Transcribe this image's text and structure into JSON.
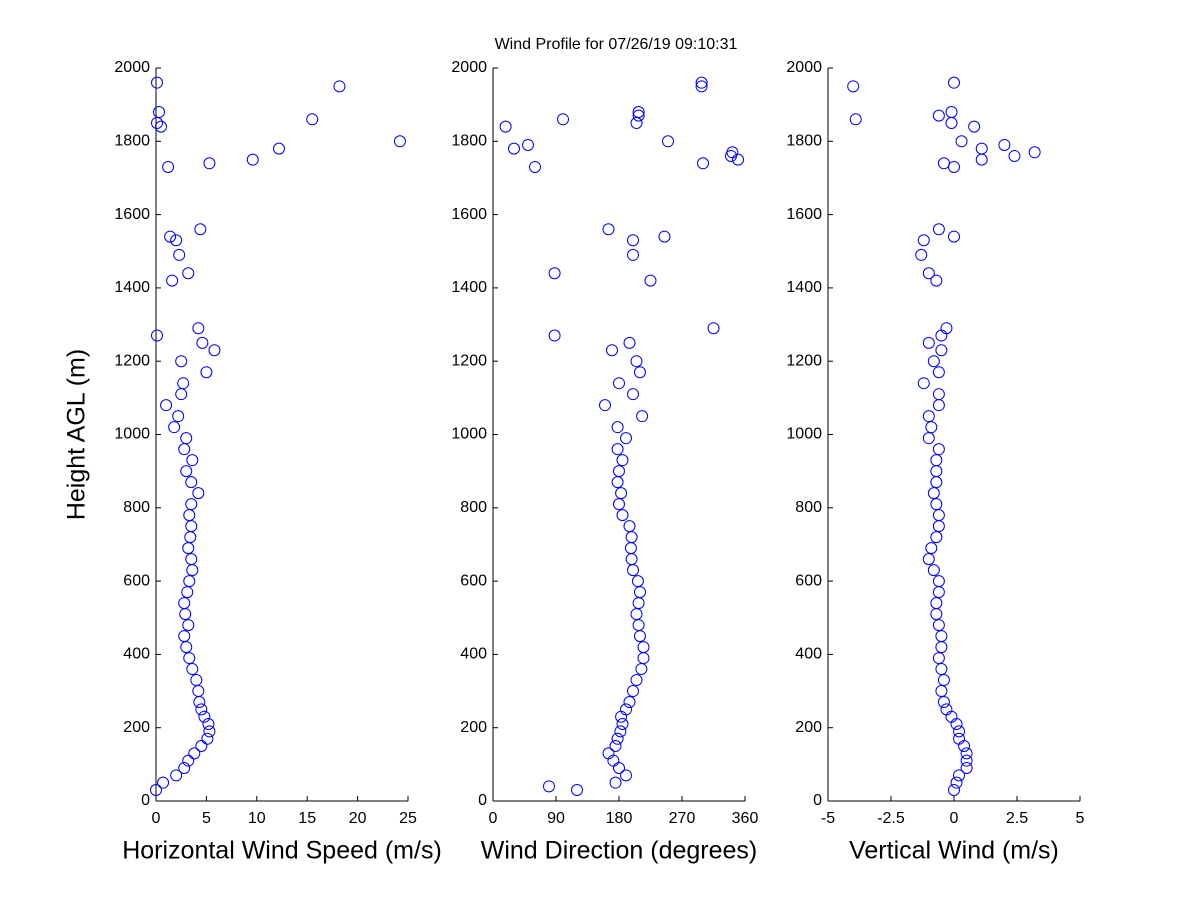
{
  "title": "Wind Profile for  07/26/19 09:10:31",
  "chart_data": [
    {
      "type": "scatter",
      "xlabel": "Horizontal Wind Speed (m/s)",
      "ylabel": "Height AGL (m)",
      "color": "#0000ff",
      "xlim": [
        0,
        25
      ],
      "xticks": [
        0,
        5,
        10,
        15,
        20,
        25
      ],
      "ylim": [
        0,
        2000
      ],
      "yticks": [
        0,
        200,
        400,
        600,
        800,
        1000,
        1200,
        1400,
        1600,
        1800,
        2000
      ],
      "x": [
        0,
        0.7,
        2,
        2.8,
        3.2,
        3.8,
        4.5,
        5.1,
        5.3,
        5.2,
        4.8,
        4.5,
        4.3,
        4.2,
        4.0,
        3.6,
        3.3,
        3.0,
        2.8,
        3.2,
        2.9,
        2.8,
        3.1,
        3.3,
        3.6,
        3.5,
        3.2,
        3.4,
        3.5,
        3.3,
        3.5,
        4.2,
        3.5,
        3.0,
        3.6,
        2.8,
        3.0,
        1.8,
        2.2,
        1.0,
        2.5,
        2.7,
        5.0,
        2.5,
        5.8,
        4.6,
        0.1,
        4.2,
        1.6,
        3.2,
        2.3,
        2.0,
        1.4,
        4.4,
        1.2,
        5.3,
        9.6,
        12.2,
        24.2,
        0.5,
        0.1,
        15.5,
        0.3,
        18.2,
        0.1
      ],
      "y": [
        30,
        50,
        70,
        90,
        110,
        130,
        150,
        170,
        190,
        210,
        230,
        250,
        270,
        300,
        330,
        360,
        390,
        420,
        450,
        480,
        510,
        540,
        570,
        600,
        630,
        660,
        690,
        720,
        750,
        780,
        810,
        840,
        870,
        900,
        930,
        960,
        990,
        1020,
        1050,
        1080,
        1110,
        1140,
        1170,
        1200,
        1230,
        1250,
        1270,
        1290,
        1420,
        1440,
        1490,
        1530,
        1540,
        1560,
        1730,
        1740,
        1750,
        1780,
        1800,
        1840,
        1850,
        1860,
        1880,
        1950,
        1960
      ]
    },
    {
      "type": "scatter",
      "xlabel": "Wind Direction (degrees)",
      "color": "#0000ff",
      "xlim": [
        0,
        360
      ],
      "xticks": [
        0,
        90,
        180,
        270,
        360
      ],
      "ylim": [
        0,
        2000
      ],
      "yticks": [
        0,
        200,
        400,
        600,
        800,
        1000,
        1200,
        1400,
        1600,
        1800,
        2000
      ],
      "x": [
        120,
        80,
        175,
        190,
        180,
        172,
        165,
        175,
        178,
        182,
        185,
        183,
        190,
        195,
        200,
        205,
        212,
        215,
        215,
        210,
        208,
        205,
        208,
        210,
        207,
        200,
        198,
        197,
        198,
        195,
        185,
        180,
        183,
        178,
        180,
        185,
        178,
        190,
        178,
        213,
        160,
        200,
        180,
        210,
        205,
        170,
        195,
        88,
        315,
        225,
        88,
        200,
        200,
        245,
        165,
        60,
        300,
        350,
        340,
        342,
        30,
        50,
        250,
        18,
        205,
        100,
        208,
        208,
        298,
        298
      ],
      "y": [
        30,
        40,
        50,
        70,
        90,
        110,
        130,
        150,
        170,
        190,
        210,
        230,
        250,
        270,
        300,
        330,
        360,
        390,
        420,
        450,
        480,
        510,
        540,
        570,
        600,
        630,
        660,
        690,
        720,
        750,
        780,
        810,
        840,
        870,
        900,
        930,
        960,
        990,
        1020,
        1050,
        1080,
        1110,
        1140,
        1170,
        1200,
        1230,
        1250,
        1270,
        1290,
        1420,
        1440,
        1490,
        1530,
        1540,
        1560,
        1730,
        1740,
        1750,
        1760,
        1770,
        1780,
        1790,
        1800,
        1840,
        1850,
        1860,
        1870,
        1880,
        1950,
        1960
      ]
    },
    {
      "type": "scatter",
      "xlabel": "Vertical Wind (m/s)",
      "color": "#0000ff",
      "xlim": [
        -5,
        5
      ],
      "xticks": [
        -5,
        -2.5,
        0,
        2.5,
        5
      ],
      "ylim": [
        0,
        2000
      ],
      "yticks": [
        0,
        200,
        400,
        600,
        800,
        1000,
        1200,
        1400,
        1600,
        1800,
        2000
      ],
      "x": [
        0,
        0.1,
        0.2,
        0.5,
        0.5,
        0.5,
        0.4,
        0.2,
        0.2,
        0.1,
        -0.1,
        -0.3,
        -0.4,
        -0.5,
        -0.4,
        -0.5,
        -0.6,
        -0.5,
        -0.5,
        -0.6,
        -0.7,
        -0.7,
        -0.6,
        -0.6,
        -0.8,
        -1.0,
        -0.9,
        -0.7,
        -0.6,
        -0.6,
        -0.7,
        -0.8,
        -0.7,
        -0.7,
        -0.7,
        -0.6,
        -1.0,
        -0.9,
        -1.0,
        -0.6,
        -0.6,
        -1.2,
        -0.6,
        -0.8,
        -0.5,
        -1.0,
        -0.5,
        -0.3,
        -0.7,
        -1.0,
        -1.3,
        -1.2,
        0,
        -0.6,
        0,
        -0.4,
        1.1,
        2.4,
        3.2,
        1.1,
        2.0,
        0.3,
        0.8,
        -0.1,
        -3.9,
        -0.6,
        -0.1,
        -4.0,
        0
      ],
      "y": [
        30,
        50,
        70,
        90,
        110,
        130,
        150,
        170,
        190,
        210,
        230,
        250,
        270,
        300,
        330,
        360,
        390,
        420,
        450,
        480,
        510,
        540,
        570,
        600,
        630,
        660,
        690,
        720,
        750,
        780,
        810,
        840,
        870,
        900,
        930,
        960,
        990,
        1020,
        1050,
        1080,
        1110,
        1140,
        1170,
        1200,
        1230,
        1250,
        1270,
        1290,
        1420,
        1440,
        1490,
        1530,
        1540,
        1560,
        1730,
        1740,
        1750,
        1760,
        1770,
        1780,
        1790,
        1800,
        1840,
        1850,
        1860,
        1870,
        1880,
        1950,
        1960
      ]
    }
  ]
}
